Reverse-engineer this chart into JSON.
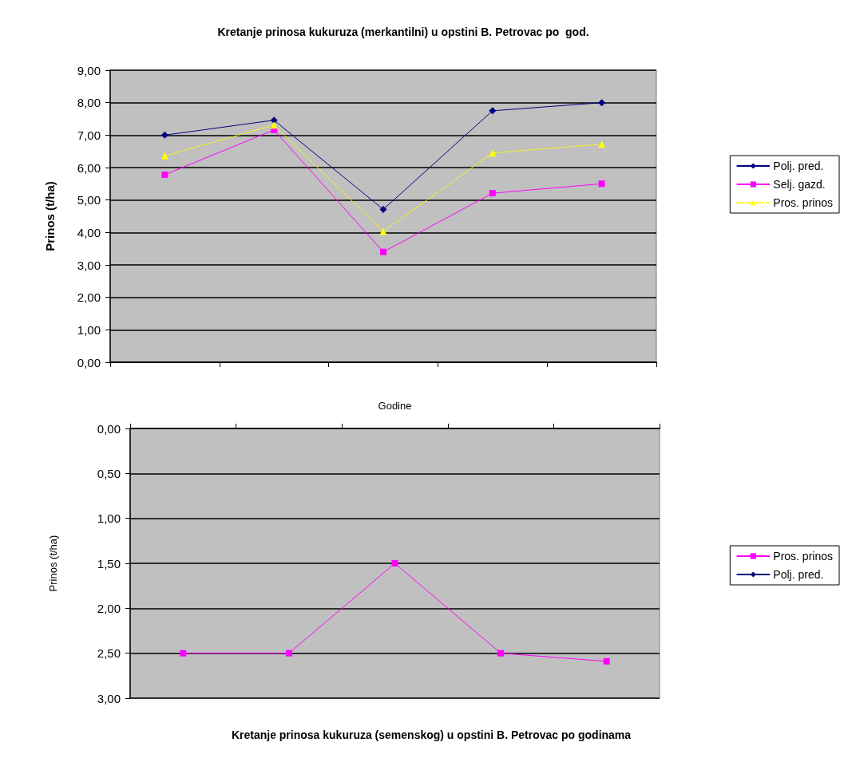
{
  "chart_data": [
    {
      "type": "line",
      "title": "Kretanje prinosa kukuruza (merkantilni) u opstini B. Petrovac po  god.",
      "ylabel": "Prinos (t/ha)",
      "categories": [
        null,
        null,
        null,
        null,
        null
      ],
      "series": [
        {
          "name": "Polj. pred.",
          "color": "#000080",
          "marker": "diamond",
          "line_style": "solid",
          "values": [
            7.0,
            7.46,
            4.71,
            7.75,
            8.0
          ]
        },
        {
          "name": "Selj. gazd.",
          "color": "#ff00ff",
          "marker": "square",
          "line_style": "solid",
          "values": [
            5.78,
            7.16,
            3.4,
            5.21,
            5.5
          ]
        },
        {
          "name": "Pros. prinos",
          "color": "#ffff00",
          "marker": "triangle",
          "line_style": "dashed",
          "values": [
            6.36,
            7.31,
            4.03,
            6.45,
            6.72
          ]
        }
      ],
      "ylim": [
        0,
        9
      ],
      "yticks": [
        {
          "value": 0,
          "label": "0,00"
        },
        {
          "value": 1,
          "label": "1,00"
        },
        {
          "value": 2,
          "label": "2,00"
        },
        {
          "value": 3,
          "label": "3,00"
        },
        {
          "value": 4,
          "label": "4,00"
        },
        {
          "value": 5,
          "label": "5,00"
        },
        {
          "value": 6,
          "label": "6,00"
        },
        {
          "value": 7,
          "label": "7,00"
        },
        {
          "value": 8,
          "label": "8,00"
        },
        {
          "value": 9,
          "label": "9,00"
        }
      ],
      "grid": "y",
      "legend": "right"
    },
    {
      "type": "line",
      "title": "Kretanje prinosa kukuruza (semenskog) u opstini B. Petrovac po godinama",
      "xlabel": "Godine",
      "ylabel": "Prinos (t/ha)",
      "categories": [
        null,
        null,
        null,
        null,
        null
      ],
      "series": [
        {
          "name": "Pros. prinos",
          "color": "#ff00ff",
          "marker": "square",
          "line_style": "solid",
          "values": [
            2.5,
            2.5,
            1.5,
            2.5,
            2.59
          ]
        },
        {
          "name": "Polj. pred.",
          "color": "#000080",
          "marker": "diamond",
          "line_style": "solid",
          "values": [
            null,
            null,
            null,
            null,
            null
          ]
        }
      ],
      "ylim": [
        3,
        0
      ],
      "yticks": [
        {
          "value": 0,
          "label": "0,00"
        },
        {
          "value": 0.5,
          "label": "0,50"
        },
        {
          "value": 1,
          "label": "1,00"
        },
        {
          "value": 1.5,
          "label": "1,50"
        },
        {
          "value": 2,
          "label": "2,00"
        },
        {
          "value": 2.5,
          "label": "2,50"
        },
        {
          "value": 3,
          "label": "3,00"
        }
      ],
      "grid": "y",
      "legend": "right"
    }
  ]
}
